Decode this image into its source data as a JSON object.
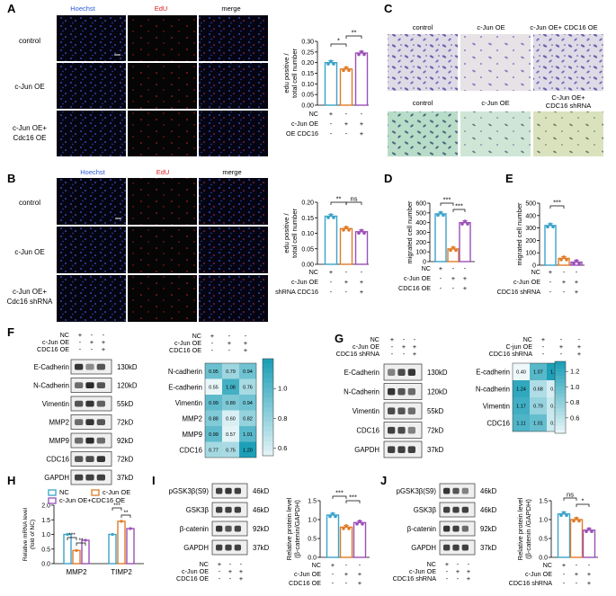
{
  "panels": {
    "A": {
      "letter": "A",
      "columns": [
        "Hoechst",
        "EdU",
        "merge"
      ],
      "rows": [
        "control",
        "c-Jun OE",
        "c-Jun OE+",
        "Cdc16 OE"
      ],
      "chart_data": {
        "type": "bar",
        "ylabel_line1": "edu positive /",
        "ylabel_line2": "total cell number",
        "ylim": [
          0,
          0.3
        ],
        "yticks": [
          "0.00",
          "0.05",
          "0.10",
          "0.15",
          "0.20",
          "0.25",
          "0.30"
        ],
        "values": [
          0.2,
          0.17,
          0.245
        ],
        "significance": [
          "*",
          "**"
        ],
        "conditions": [
          {
            "label": "NC",
            "signs": [
              "+",
              "-",
              "-"
            ]
          },
          {
            "label": "c-Jun OE",
            "signs": [
              "-",
              "+",
              "+"
            ]
          },
          {
            "label": "OE CDC16",
            "signs": [
              "-",
              "-",
              "+"
            ]
          }
        ]
      }
    },
    "B": {
      "letter": "B",
      "columns": [
        "Hoechst",
        "EdU",
        "merge"
      ],
      "rows": [
        "control",
        "c-Jun OE",
        "c-Jun OE+",
        "Cdc16 shRNA"
      ],
      "chart_data": {
        "type": "bar",
        "ylabel_line1": "edu positive /",
        "ylabel_line2": "total cell number",
        "ylim": [
          0,
          0.2
        ],
        "yticks": [
          "0.00",
          "0.05",
          "0.10",
          "0.15",
          "0.20"
        ],
        "values": [
          0.155,
          0.115,
          0.105
        ],
        "significance": [
          "**",
          "ns"
        ],
        "conditions": [
          {
            "label": "NC",
            "signs": [
              "+",
              "-",
              "-"
            ]
          },
          {
            "label": "c-Jun OE",
            "signs": [
              "-",
              "+",
              "+"
            ]
          },
          {
            "label": "shRNA CDC16",
            "signs": [
              "-",
              "-",
              "+"
            ]
          }
        ]
      }
    },
    "C": {
      "letter": "C",
      "top_labels": [
        "control",
        "c-Jun OE",
        "c-Jun OE+ CDC16 OE"
      ],
      "bottom_labels": [
        "control",
        "c-Jun OE",
        "C-Jun OE+",
        "CDC16 shRNA"
      ]
    },
    "D": {
      "letter": "D",
      "chart_data": {
        "type": "bar",
        "ylabel": "migrated cell number",
        "ylim": [
          0,
          600
        ],
        "yticks": [
          "0",
          "100",
          "200",
          "300",
          "400",
          "500",
          "600"
        ],
        "values": [
          490,
          130,
          400
        ],
        "significance": [
          "***",
          "***"
        ],
        "conditions": [
          {
            "label": "NC",
            "signs": [
              "+",
              "-",
              "-"
            ]
          },
          {
            "label": "c-Jun OE",
            "signs": [
              "-",
              "+",
              "+"
            ]
          },
          {
            "label": "CDC16 OE",
            "signs": [
              "-",
              "-",
              "+"
            ]
          }
        ]
      }
    },
    "E": {
      "letter": "E",
      "chart_data": {
        "type": "bar",
        "ylabel": "migrated cell number",
        "ylim": [
          0,
          500
        ],
        "yticks": [
          "0",
          "100",
          "200",
          "300",
          "400",
          "500"
        ],
        "values": [
          320,
          55,
          25
        ],
        "significance": [
          "***"
        ],
        "conditions": [
          {
            "label": "NC",
            "signs": [
              "+",
              "-",
              "-"
            ]
          },
          {
            "label": "c-Jun OE",
            "signs": [
              "-",
              "+",
              "+"
            ]
          },
          {
            "label": "CDC16 shRNA",
            "signs": [
              "-",
              "-",
              "+"
            ]
          }
        ]
      }
    },
    "F": {
      "letter": "F",
      "conditions": [
        {
          "label": "NC",
          "signs": [
            "+",
            "-",
            "-"
          ]
        },
        {
          "label": "c-Jun OE",
          "signs": [
            "-",
            "+",
            "+"
          ]
        },
        {
          "label": "CDC16 OE",
          "signs": [
            "-",
            "-",
            "+"
          ]
        }
      ],
      "blot_proteins": [
        "E-Cadherin",
        "N-Cadherin",
        "Vimentin",
        "MMP2",
        "MMP9",
        "CDC16",
        "GAPDH"
      ],
      "blot_sizes": [
        "130kD",
        "120kD",
        "55kD",
        "72kD",
        "92kD",
        "72kD",
        "37kD"
      ],
      "chart_data": {
        "type": "heatmap",
        "rows": [
          "N-cadherin",
          "E-cadherin",
          "Vimentin",
          "MMP2",
          "MMP9",
          "CDC16"
        ],
        "values": [
          [
            0.95,
            0.79,
            0.94
          ],
          [
            0.55,
            1.08,
            0.76
          ],
          [
            0.99,
            0.89,
            0.94
          ],
          [
            0.88,
            0.6,
            0.82
          ],
          [
            0.99,
            0.57,
            1.01
          ],
          [
            0.77,
            0.75,
            1.2
          ]
        ],
        "labels": [
          [
            "0.95",
            "0.79",
            "0.94"
          ],
          [
            "0.55",
            "1.08",
            "0.76"
          ],
          [
            "0.99",
            "0.89",
            "0.94"
          ],
          [
            "0.88",
            "0.60",
            "0.82"
          ],
          [
            "0.99",
            "0.57",
            "1.01"
          ],
          [
            "0.77",
            "0.75",
            "1.20"
          ]
        ],
        "scale": [
          0.55,
          1.2
        ],
        "scale_ticks": [
          "1.0",
          "0.8",
          "0.6"
        ],
        "low_color": "#e9f6f8",
        "high_color": "#1d9fb7"
      }
    },
    "G": {
      "letter": "G",
      "conditions": [
        {
          "label": "NC",
          "signs": [
            "+",
            "-",
            "-"
          ]
        },
        {
          "label": "c-Jun OE",
          "signs": [
            "-",
            "+",
            "+"
          ]
        },
        {
          "label": "CDC16 shRNA",
          "signs": [
            "-",
            "-",
            "+"
          ]
        }
      ],
      "heatmap_conditions": [
        {
          "label": "NC",
          "signs": [
            "+",
            "-",
            "-"
          ]
        },
        {
          "label": "C-jun OE",
          "signs": [
            "-",
            "+",
            "+"
          ]
        },
        {
          "label": "CDC16 shRNA",
          "signs": [
            "-",
            "-",
            "+"
          ]
        }
      ],
      "blot_proteins": [
        "E-Cadherin",
        "N-Cadherin",
        "Vimentin",
        "CDC16",
        "GAPDH"
      ],
      "blot_sizes": [
        "130kD",
        "120kD",
        "55kD",
        "72kD",
        "37kD"
      ],
      "chart_data": {
        "type": "heatmap",
        "rows": [
          "E-cadherin",
          "N-cadherin",
          "Vimentin",
          "CDC16"
        ],
        "values": [
          [
            0.4,
            1.07,
            1.33
          ],
          [
            1.24,
            0.68,
            0.5
          ],
          [
            1.17,
            0.79,
            0.57
          ],
          [
            1.11,
            1.01,
            0.55
          ]
        ],
        "labels": [
          [
            "0.40",
            "1.07",
            "1.33"
          ],
          [
            "1.24",
            "0.68",
            "0.50"
          ],
          [
            "1.17",
            "0.79",
            "0.57"
          ],
          [
            "1.11",
            "1.01",
            "0.55"
          ]
        ],
        "scale": [
          0.4,
          1.33
        ],
        "scale_ticks": [
          "1.2",
          "1.0",
          "0.8",
          "0.6"
        ],
        "low_color": "#eef8fa",
        "high_color": "#1d9fb7"
      }
    },
    "H": {
      "letter": "H",
      "chart_data": {
        "type": "bar",
        "ylabel_line1": "Relative mRNA level",
        "ylabel_line2": "(fold of NC)",
        "ylim": [
          0,
          2.0
        ],
        "yticks": [
          "0.0",
          "0.5",
          "1.0",
          "1.5",
          "2.0"
        ],
        "categories": [
          "MMP2",
          "TIMP2"
        ],
        "series": [
          {
            "name": "NC",
            "values": [
              1.0,
              1.0
            ],
            "color": "#3aa3c9"
          },
          {
            "name": "c-Jun OE",
            "values": [
              0.45,
              1.45
            ],
            "color": "#e07b26"
          },
          {
            "name": "c-Jun OE+CDC16 OE",
            "values": [
              0.8,
              1.2
            ],
            "color": "#9b4fb8"
          }
        ],
        "significance": [
          "***",
          "**",
          "***",
          "**"
        ]
      }
    },
    "I": {
      "letter": "I",
      "blot_proteins": [
        "pGSK3β(S9)",
        "GSK3β",
        "β-catenin",
        "GAPDH"
      ],
      "blot_sizes": [
        "46kD",
        "46kD",
        "92kD",
        "37kD"
      ],
      "conditions": [
        {
          "label": "NC",
          "signs": [
            "+",
            "-",
            "-"
          ]
        },
        {
          "label": "c-Jun OE",
          "signs": [
            "-",
            "+",
            "+"
          ]
        },
        {
          "label": "CDC16 OE",
          "signs": [
            "-",
            "-",
            "+"
          ]
        }
      ],
      "chart_data": {
        "type": "bar",
        "ylabel_line1": "Relative protein level",
        "ylabel_line2": "(β-catenin/GAPDH)",
        "ylim": [
          0,
          1.5
        ],
        "yticks": [
          "0.0",
          "0.5",
          "1.0",
          "1.5"
        ],
        "values": [
          1.12,
          0.8,
          0.92
        ],
        "significance": [
          "***",
          "***"
        ],
        "conditions": [
          {
            "label": "NC",
            "signs": [
              "+",
              "-",
              "-"
            ]
          },
          {
            "label": "c-Jun OE",
            "signs": [
              "-",
              "+",
              "+"
            ]
          },
          {
            "label": "CDC16 OE",
            "signs": [
              "-",
              "-",
              "+"
            ]
          }
        ]
      }
    },
    "J": {
      "letter": "J",
      "blot_proteins": [
        "pGSK3β(S9)",
        "GSK3β",
        "β-catenin",
        "GAPDH"
      ],
      "blot_sizes": [
        "46kD",
        "46kD",
        "92kD",
        "37kD"
      ],
      "conditions": [
        {
          "label": "NC",
          "signs": [
            "+",
            "-",
            "-"
          ]
        },
        {
          "label": "c-Jun OE",
          "signs": [
            "-",
            "+",
            "+"
          ]
        },
        {
          "label": "CDC16 shRNA",
          "signs": [
            "-",
            "-",
            "+"
          ]
        }
      ],
      "chart_data": {
        "type": "bar",
        "ylabel_line1": "Relative protein level",
        "ylabel_line2": "(β-catenin /GAPDH)",
        "ylim": [
          0,
          1.5
        ],
        "yticks": [
          "0.0",
          "0.5",
          "1.0",
          "1.5"
        ],
        "values": [
          1.15,
          1.0,
          0.72
        ],
        "significance": [
          "ns",
          "*"
        ],
        "conditions": [
          {
            "label": "NC",
            "signs": [
              "+",
              "-",
              "-"
            ]
          },
          {
            "label": "c-Jun OE",
            "signs": [
              "-",
              "+",
              "+"
            ]
          },
          {
            "label": "CDC16 shRNA",
            "signs": [
              "-",
              "-",
              "+"
            ]
          }
        ]
      }
    }
  },
  "colors": {
    "hoechst": "#2c5bd8",
    "edu": "#e02020",
    "bar_blue": "#3aa3c9",
    "bar_orange": "#e07b26",
    "bar_purple": "#9b4fb8"
  }
}
